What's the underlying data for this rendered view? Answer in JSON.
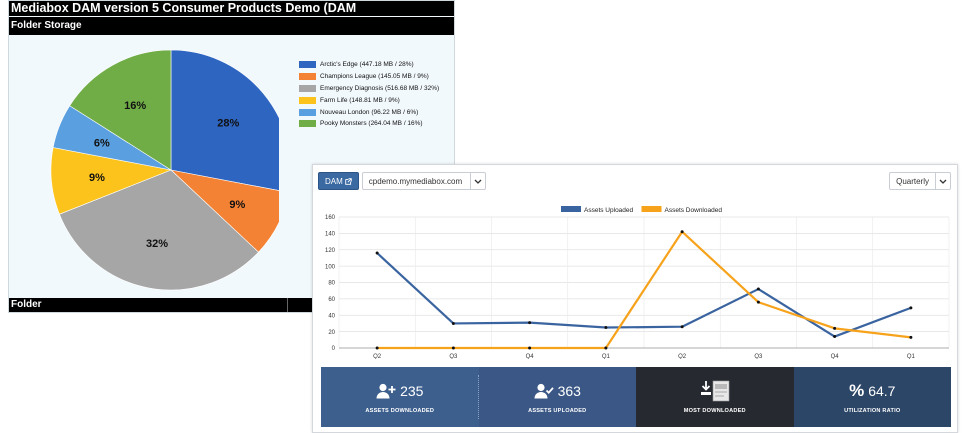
{
  "storage_report": {
    "title": "Mediabox DAM version 5 Consumer Products Demo (DAM",
    "subtitle": "Folder Storage",
    "footer": "Folder",
    "chart_data": {
      "type": "pie",
      "slices": [
        {
          "name": "Arctic's Edge",
          "legend": "Arctic's Edge (447.18 MB / 28%)",
          "value": 28,
          "label": "28%",
          "color": "#2e65c1"
        },
        {
          "name": "Champions League",
          "legend": "Champions League (145.05 MB / 9%)",
          "value": 9,
          "label": "9%",
          "color": "#f48234"
        },
        {
          "name": "Emergency Diagnosis",
          "legend": "Emergency Diagnosis (516.68 MB / 32%)",
          "value": 32,
          "label": "32%",
          "color": "#a6a6a6"
        },
        {
          "name": "Farm Life",
          "legend": "Farm Life (148.81 MB / 9%)",
          "value": 9,
          "label": "9%",
          "color": "#fcc31c"
        },
        {
          "name": "Nouveau London",
          "legend": "Nouveau London (96.22 MB / 6%)",
          "value": 6,
          "label": "6%",
          "color": "#5aa0e0"
        },
        {
          "name": "Pooky Monsters",
          "legend": "Pooky Monsters (264.04 MB / 16%)",
          "value": 16,
          "label": "16%",
          "color": "#70ad47"
        }
      ]
    }
  },
  "dashboard": {
    "dam_button": "DAM",
    "site_value": "cpdemo.mymediabox.com",
    "period_value": "Quarterly",
    "chart_data": {
      "type": "line",
      "categories": [
        "Q2",
        "Q3",
        "Q4",
        "Q1",
        "Q2",
        "Q3",
        "Q4",
        "Q1"
      ],
      "y_ticks": [
        "0",
        "20",
        "40",
        "60",
        "80",
        "100",
        "120",
        "140",
        "160"
      ],
      "ylim": [
        0,
        160
      ],
      "legend_position": "top-center",
      "grid": true,
      "series": [
        {
          "name": "Assets Uploaded",
          "color": "#3a64a0",
          "values": [
            116,
            30,
            31,
            25,
            26,
            72,
            14,
            49
          ]
        },
        {
          "name": "Assets Downloaded",
          "color": "#f7a21b",
          "values": [
            0,
            0,
            0,
            0,
            142,
            56,
            24,
            13
          ]
        }
      ]
    },
    "kpis": [
      {
        "value": "235",
        "label": "ASSETS DOWNLOADED",
        "icon": "user-plus-icon"
      },
      {
        "value": "363",
        "label": "ASSETS UPLOADED",
        "icon": "user-check-icon"
      },
      {
        "value": "",
        "label": "MOST DOWNLOADED",
        "icon": "download-icon"
      },
      {
        "value": "64.7",
        "label": "UTILIZATION RATIO",
        "icon": "percent-icon",
        "symbol": "%"
      }
    ]
  }
}
